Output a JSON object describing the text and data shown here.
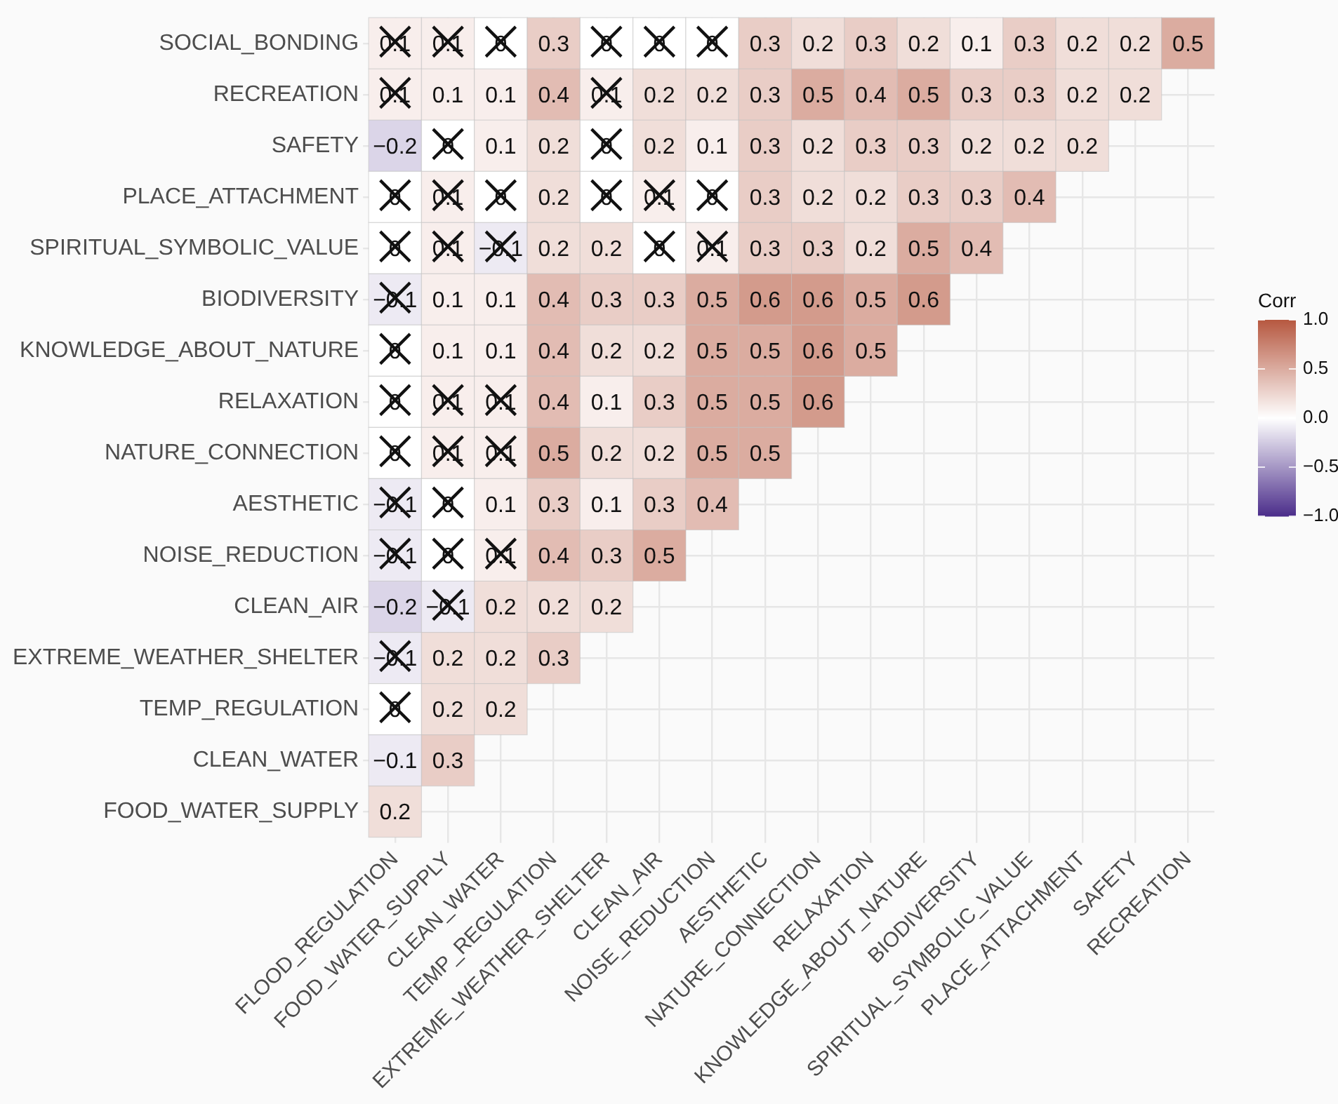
{
  "chart_data": {
    "type": "heatmap",
    "clabel": "Corr",
    "clim": [
      -1,
      1
    ],
    "cticks": [
      {
        "value": -1,
        "label": "−1.0"
      },
      {
        "value": -0.5,
        "label": "−0.5"
      },
      {
        "value": 0,
        "label": "0.0"
      },
      {
        "value": 0.5,
        "label": "0.5"
      },
      {
        "value": 1,
        "label": "1.0"
      }
    ],
    "categories": [
      "FLOOD_REGULATION",
      "FOOD_WATER_SUPPLY",
      "CLEAN_WATER",
      "TEMP_REGULATION",
      "EXTREME_WEATHER_SHELTER",
      "CLEAN_AIR",
      "NOISE_REDUCTION",
      "AESTHETIC",
      "NATURE_CONNECTION",
      "RELAXATION",
      "KNOWLEDGE_ABOUT_NATURE",
      "BIODIVERSITY",
      "SPIRITUAL_SYMBOLIC_VALUE",
      "PLACE_ATTACHMENT",
      "SAFETY",
      "RECREATION"
    ],
    "y_categories": [
      "SOCIAL_BONDING",
      "RECREATION",
      "SAFETY",
      "PLACE_ATTACHMENT",
      "SPIRITUAL_SYMBOLIC_VALUE",
      "BIODIVERSITY",
      "KNOWLEDGE_ABOUT_NATURE",
      "RELAXATION",
      "NATURE_CONNECTION",
      "AESTHETIC",
      "NOISE_REDUCTION",
      "CLEAN_AIR",
      "EXTREME_WEATHER_SHELTER",
      "TEMP_REGULATION",
      "CLEAN_WATER",
      "FOOD_WATER_SUPPLY"
    ],
    "cells": [
      [
        0.1,
        0.1,
        0,
        0.3,
        0,
        0,
        0,
        0.3,
        0.2,
        0.3,
        0.2,
        0.1,
        0.3,
        0.2,
        0.2,
        0.5
      ],
      [
        0.1,
        0.1,
        0.1,
        0.4,
        0.1,
        0.2,
        0.2,
        0.3,
        0.5,
        0.4,
        0.5,
        0.3,
        0.3,
        0.2,
        0.2,
        null
      ],
      [
        -0.2,
        0,
        0.1,
        0.2,
        0,
        0.2,
        0.1,
        0.3,
        0.2,
        0.3,
        0.3,
        0.2,
        0.2,
        0.2,
        null,
        null
      ],
      [
        0,
        0.1,
        0,
        0.2,
        0,
        0.1,
        0,
        0.3,
        0.2,
        0.2,
        0.3,
        0.3,
        0.4,
        null,
        null,
        null
      ],
      [
        0,
        0.1,
        -0.1,
        0.2,
        0.2,
        0,
        0.1,
        0.3,
        0.3,
        0.2,
        0.5,
        0.4,
        null,
        null,
        null,
        null
      ],
      [
        -0.1,
        0.1,
        0.1,
        0.4,
        0.3,
        0.3,
        0.5,
        0.6,
        0.6,
        0.5,
        0.6,
        null,
        null,
        null,
        null,
        null
      ],
      [
        0,
        0.1,
        0.1,
        0.4,
        0.2,
        0.2,
        0.5,
        0.5,
        0.6,
        0.5,
        null,
        null,
        null,
        null,
        null,
        null
      ],
      [
        0,
        0.1,
        0.1,
        0.4,
        0.1,
        0.3,
        0.5,
        0.5,
        0.6,
        null,
        null,
        null,
        null,
        null,
        null,
        null
      ],
      [
        0,
        0.1,
        0.1,
        0.5,
        0.2,
        0.2,
        0.5,
        0.5,
        null,
        null,
        null,
        null,
        null,
        null,
        null,
        null
      ],
      [
        -0.1,
        0,
        0.1,
        0.3,
        0.1,
        0.3,
        0.4,
        null,
        null,
        null,
        null,
        null,
        null,
        null,
        null,
        null
      ],
      [
        -0.1,
        0,
        0.1,
        0.4,
        0.3,
        0.5,
        null,
        null,
        null,
        null,
        null,
        null,
        null,
        null,
        null,
        null
      ],
      [
        -0.2,
        -0.1,
        0.2,
        0.2,
        0.2,
        null,
        null,
        null,
        null,
        null,
        null,
        null,
        null,
        null,
        null,
        null
      ],
      [
        -0.1,
        0.2,
        0.2,
        0.3,
        null,
        null,
        null,
        null,
        null,
        null,
        null,
        null,
        null,
        null,
        null,
        null
      ],
      [
        0,
        0.2,
        0.2,
        null,
        null,
        null,
        null,
        null,
        null,
        null,
        null,
        null,
        null,
        null,
        null,
        null
      ],
      [
        -0.1,
        0.3,
        null,
        null,
        null,
        null,
        null,
        null,
        null,
        null,
        null,
        null,
        null,
        null,
        null,
        null
      ],
      [
        0.2,
        null,
        null,
        null,
        null,
        null,
        null,
        null,
        null,
        null,
        null,
        null,
        null,
        null,
        null,
        null
      ]
    ],
    "cell_labels": [
      [
        "0.1",
        "0.1",
        "0",
        "0.3",
        "0",
        "0",
        "0",
        "0.3",
        "0.2",
        "0.3",
        "0.2",
        "0.1",
        "0.3",
        "0.2",
        "0.2",
        "0.5"
      ],
      [
        "0.1",
        "0.1",
        "0.1",
        "0.4",
        "0.1",
        "0.2",
        "0.2",
        "0.3",
        "0.5",
        "0.4",
        "0.5",
        "0.3",
        "0.3",
        "0.2",
        "0.2",
        null
      ],
      [
        "−0.2",
        "0",
        "0.1",
        "0.2",
        "0",
        "0.2",
        "0.1",
        "0.3",
        "0.2",
        "0.3",
        "0.3",
        "0.2",
        "0.2",
        "0.2",
        null,
        null
      ],
      [
        "0",
        "0.1",
        "0",
        "0.2",
        "0",
        "0.1",
        "0",
        "0.3",
        "0.2",
        "0.2",
        "0.3",
        "0.3",
        "0.4",
        null,
        null,
        null
      ],
      [
        "0",
        "0.1",
        "−0.1",
        "0.2",
        "0.2",
        "0",
        "0.1",
        "0.3",
        "0.3",
        "0.2",
        "0.5",
        "0.4",
        null,
        null,
        null,
        null
      ],
      [
        "−0.1",
        "0.1",
        "0.1",
        "0.4",
        "0.3",
        "0.3",
        "0.5",
        "0.6",
        "0.6",
        "0.5",
        "0.6",
        null,
        null,
        null,
        null,
        null
      ],
      [
        "0",
        "0.1",
        "0.1",
        "0.4",
        "0.2",
        "0.2",
        "0.5",
        "0.5",
        "0.6",
        "0.5",
        null,
        null,
        null,
        null,
        null,
        null
      ],
      [
        "0",
        "0.1",
        "0.1",
        "0.4",
        "0.1",
        "0.3",
        "0.5",
        "0.5",
        "0.6",
        null,
        null,
        null,
        null,
        null,
        null,
        null
      ],
      [
        "0",
        "0.1",
        "0.1",
        "0.5",
        "0.2",
        "0.2",
        "0.5",
        "0.5",
        null,
        null,
        null,
        null,
        null,
        null,
        null,
        null
      ],
      [
        "−0.1",
        "0",
        "0.1",
        "0.3",
        "0.1",
        "0.3",
        "0.4",
        null,
        null,
        null,
        null,
        null,
        null,
        null,
        null,
        null
      ],
      [
        "−0.1",
        "0",
        "0.1",
        "0.4",
        "0.3",
        "0.5",
        null,
        null,
        null,
        null,
        null,
        null,
        null,
        null,
        null,
        null
      ],
      [
        "−0.2",
        "−0.1",
        "0.2",
        "0.2",
        "0.2",
        null,
        null,
        null,
        null,
        null,
        null,
        null,
        null,
        null,
        null,
        null
      ],
      [
        "−0.1",
        "0.2",
        "0.2",
        "0.3",
        null,
        null,
        null,
        null,
        null,
        null,
        null,
        null,
        null,
        null,
        null,
        null
      ],
      [
        "0",
        "0.2",
        "0.2",
        null,
        null,
        null,
        null,
        null,
        null,
        null,
        null,
        null,
        null,
        null,
        null,
        null
      ],
      [
        "−0.1",
        "0.3",
        null,
        null,
        null,
        null,
        null,
        null,
        null,
        null,
        null,
        null,
        null,
        null,
        null,
        null
      ],
      [
        "0.2",
        null,
        null,
        null,
        null,
        null,
        null,
        null,
        null,
        null,
        null,
        null,
        null,
        null,
        null,
        null
      ]
    ],
    "annotations": [
      {
        "text": "×",
        "x": "FLOOD_REGULATION",
        "y": "SOCIAL_BONDING"
      },
      {
        "text": "×",
        "x": "FOOD_WATER_SUPPLY",
        "y": "SOCIAL_BONDING"
      },
      {
        "text": "×",
        "x": "CLEAN_WATER",
        "y": "SOCIAL_BONDING"
      },
      {
        "text": "×",
        "x": "EXTREME_WEATHER_SHELTER",
        "y": "SOCIAL_BONDING"
      },
      {
        "text": "×",
        "x": "CLEAN_AIR",
        "y": "SOCIAL_BONDING"
      },
      {
        "text": "×",
        "x": "NOISE_REDUCTION",
        "y": "SOCIAL_BONDING"
      },
      {
        "text": "×",
        "x": "FLOOD_REGULATION",
        "y": "RECREATION"
      },
      {
        "text": "×",
        "x": "EXTREME_WEATHER_SHELTER",
        "y": "RECREATION"
      },
      {
        "text": "×",
        "x": "FOOD_WATER_SUPPLY",
        "y": "SAFETY"
      },
      {
        "text": "×",
        "x": "EXTREME_WEATHER_SHELTER",
        "y": "SAFETY"
      },
      {
        "text": "×",
        "x": "FLOOD_REGULATION",
        "y": "PLACE_ATTACHMENT"
      },
      {
        "text": "×",
        "x": "FOOD_WATER_SUPPLY",
        "y": "PLACE_ATTACHMENT"
      },
      {
        "text": "×",
        "x": "CLEAN_WATER",
        "y": "PLACE_ATTACHMENT"
      },
      {
        "text": "×",
        "x": "EXTREME_WEATHER_SHELTER",
        "y": "PLACE_ATTACHMENT"
      },
      {
        "text": "×",
        "x": "CLEAN_AIR",
        "y": "PLACE_ATTACHMENT"
      },
      {
        "text": "×",
        "x": "NOISE_REDUCTION",
        "y": "PLACE_ATTACHMENT"
      },
      {
        "text": "×",
        "x": "FLOOD_REGULATION",
        "y": "SPIRITUAL_SYMBOLIC_VALUE"
      },
      {
        "text": "×",
        "x": "FOOD_WATER_SUPPLY",
        "y": "SPIRITUAL_SYMBOLIC_VALUE"
      },
      {
        "text": "×",
        "x": "CLEAN_WATER",
        "y": "SPIRITUAL_SYMBOLIC_VALUE"
      },
      {
        "text": "×",
        "x": "CLEAN_AIR",
        "y": "SPIRITUAL_SYMBOLIC_VALUE"
      },
      {
        "text": "×",
        "x": "NOISE_REDUCTION",
        "y": "SPIRITUAL_SYMBOLIC_VALUE"
      },
      {
        "text": "×",
        "x": "FLOOD_REGULATION",
        "y": "BIODIVERSITY"
      },
      {
        "text": "×",
        "x": "FLOOD_REGULATION",
        "y": "KNOWLEDGE_ABOUT_NATURE"
      },
      {
        "text": "×",
        "x": "FLOOD_REGULATION",
        "y": "RELAXATION"
      },
      {
        "text": "×",
        "x": "FOOD_WATER_SUPPLY",
        "y": "RELAXATION"
      },
      {
        "text": "×",
        "x": "CLEAN_WATER",
        "y": "RELAXATION"
      },
      {
        "text": "×",
        "x": "FLOOD_REGULATION",
        "y": "NATURE_CONNECTION"
      },
      {
        "text": "×",
        "x": "FOOD_WATER_SUPPLY",
        "y": "NATURE_CONNECTION"
      },
      {
        "text": "×",
        "x": "CLEAN_WATER",
        "y": "NATURE_CONNECTION"
      },
      {
        "text": "×",
        "x": "FLOOD_REGULATION",
        "y": "AESTHETIC"
      },
      {
        "text": "×",
        "x": "FOOD_WATER_SUPPLY",
        "y": "AESTHETIC"
      },
      {
        "text": "×",
        "x": "FLOOD_REGULATION",
        "y": "NOISE_REDUCTION"
      },
      {
        "text": "×",
        "x": "FOOD_WATER_SUPPLY",
        "y": "NOISE_REDUCTION"
      },
      {
        "text": "×",
        "x": "CLEAN_WATER",
        "y": "NOISE_REDUCTION"
      },
      {
        "text": "×",
        "x": "FOOD_WATER_SUPPLY",
        "y": "CLEAN_AIR"
      },
      {
        "text": "×",
        "x": "FLOOD_REGULATION",
        "y": "EXTREME_WEATHER_SHELTER"
      },
      {
        "text": "×",
        "x": "FLOOD_REGULATION",
        "y": "TEMP_REGULATION"
      }
    ],
    "grid": true
  }
}
